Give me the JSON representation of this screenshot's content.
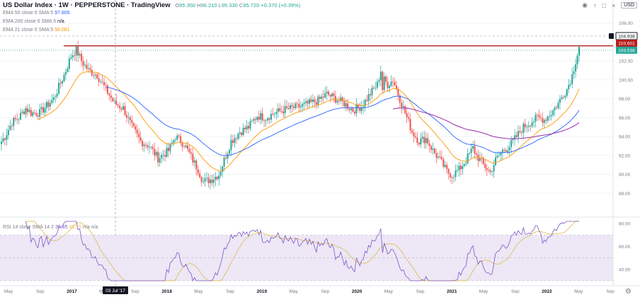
{
  "header": {
    "title": "US Dollar Index · 1W · PEPPERSTONE · TradingView",
    "ohlc": {
      "o_label": "O",
      "o": "95.350",
      "h_label": "H",
      "h": "96.210",
      "l_label": "L",
      "l": "95.330",
      "c_label": "C",
      "c": "95.720",
      "change": "+0.370 (+0.39%)"
    }
  },
  "legend": [
    {
      "label": "EMA 50 close 0 SMA 5",
      "value": "97.806",
      "color": "#2962ff"
    },
    {
      "label": "EMA 200 close 0 SMA 5",
      "value": "n/a",
      "color": "#9c27b0"
    },
    {
      "label": "EMA 21 close 0 SMA 5",
      "value": "98.081",
      "color": "#ff9800"
    }
  ],
  "rsi_legend": {
    "label": "RSI 14 close SMA 14 2",
    "v1": "35.85",
    "v2": "40.79",
    "v3": "n/a n/a",
    "c1": "#7e57c2",
    "c2": "#e0c060"
  },
  "toolbar": {
    "currency": "USD",
    "icons": [
      "eye-icon",
      "up-arrow-icon",
      "square-icon",
      "close-icon"
    ]
  },
  "settings_icon": "gear-icon",
  "price_labels": {
    "resistance": "104.938",
    "red": "103.601",
    "green": "103.538"
  },
  "chart_data": {
    "type": "candlestick",
    "title": "US Dollar Index",
    "price_ylim": [
      86,
      106.8
    ],
    "price_ticks": [
      88,
      90,
      92,
      94,
      96,
      98,
      100,
      102,
      106
    ],
    "rsi_ylim": [
      30,
      82
    ],
    "rsi_ticks": [
      40,
      60,
      80
    ],
    "rsi_band": [
      30,
      70
    ],
    "resistance_level": 103.6,
    "x_labels": [
      "May",
      "Sep",
      "2017",
      "May",
      "Sep",
      "2018",
      "May",
      "Sep",
      "2019",
      "May",
      "Sep",
      "2020",
      "May",
      "Sep",
      "2021",
      "May",
      "Sep",
      "2022",
      "May",
      "Sep"
    ],
    "crosshair_date": "03 Jul '17",
    "key_points": [
      {
        "t": 0,
        "p": 93.5
      },
      {
        "t": 2,
        "p": 94
      },
      {
        "t": 6,
        "p": 95.5
      },
      {
        "t": 10,
        "p": 96
      },
      {
        "t": 14,
        "p": 97
      },
      {
        "t": 17,
        "p": 96.5
      },
      {
        "t": 22,
        "p": 96.5
      },
      {
        "t": 30,
        "p": 98
      },
      {
        "t": 36,
        "p": 100.5
      },
      {
        "t": 40,
        "p": 102.5
      },
      {
        "t": 43,
        "p": 103.2
      },
      {
        "t": 46,
        "p": 102
      },
      {
        "t": 50,
        "p": 101
      },
      {
        "t": 55,
        "p": 100.5
      },
      {
        "t": 60,
        "p": 99
      },
      {
        "t": 65,
        "p": 97.5
      },
      {
        "t": 70,
        "p": 97
      },
      {
        "t": 75,
        "p": 95
      },
      {
        "t": 80,
        "p": 93.5
      },
      {
        "t": 85,
        "p": 93
      },
      {
        "t": 90,
        "p": 91.7
      },
      {
        "t": 96,
        "p": 92.5
      },
      {
        "t": 100,
        "p": 94
      },
      {
        "t": 105,
        "p": 93.2
      },
      {
        "t": 110,
        "p": 91.5
      },
      {
        "t": 113,
        "p": 90.5
      },
      {
        "t": 116,
        "p": 89.2
      },
      {
        "t": 121,
        "p": 89.5
      },
      {
        "t": 125,
        "p": 90
      },
      {
        "t": 128,
        "p": 91.5
      },
      {
        "t": 132,
        "p": 93.5
      },
      {
        "t": 137,
        "p": 94.5
      },
      {
        "t": 142,
        "p": 95
      },
      {
        "t": 147,
        "p": 96.2
      },
      {
        "t": 152,
        "p": 96
      },
      {
        "t": 157,
        "p": 96.5
      },
      {
        "t": 162,
        "p": 96.8
      },
      {
        "t": 167,
        "p": 97
      },
      {
        "t": 172,
        "p": 97.2
      },
      {
        "t": 177,
        "p": 97.5
      },
      {
        "t": 182,
        "p": 97.8
      },
      {
        "t": 187,
        "p": 98.5
      },
      {
        "t": 192,
        "p": 98
      },
      {
        "t": 197,
        "p": 97.5
      },
      {
        "t": 202,
        "p": 96.8
      },
      {
        "t": 207,
        "p": 97.2
      },
      {
        "t": 210,
        "p": 98
      },
      {
        "t": 213,
        "p": 98.8
      },
      {
        "t": 216,
        "p": 99.5
      },
      {
        "t": 218,
        "p": 101
      },
      {
        "t": 219,
        "p": 99
      },
      {
        "t": 220,
        "p": 100
      },
      {
        "t": 222,
        "p": 99.5
      },
      {
        "t": 225,
        "p": 100
      },
      {
        "t": 228,
        "p": 98.5
      },
      {
        "t": 232,
        "p": 96.5
      },
      {
        "t": 236,
        "p": 94.5
      },
      {
        "t": 240,
        "p": 93.5
      },
      {
        "t": 244,
        "p": 93.8
      },
      {
        "t": 248,
        "p": 92.5
      },
      {
        "t": 252,
        "p": 91.5
      },
      {
        "t": 256,
        "p": 90.3
      },
      {
        "t": 259,
        "p": 89.9
      },
      {
        "t": 263,
        "p": 90.5
      },
      {
        "t": 267,
        "p": 91.5
      },
      {
        "t": 271,
        "p": 92.8
      },
      {
        "t": 273,
        "p": 92
      },
      {
        "t": 277,
        "p": 91
      },
      {
        "t": 281,
        "p": 90.2
      },
      {
        "t": 284,
        "p": 91.5
      },
      {
        "t": 288,
        "p": 92.5
      },
      {
        "t": 292,
        "p": 93
      },
      {
        "t": 296,
        "p": 94
      },
      {
        "t": 300,
        "p": 95
      },
      {
        "t": 304,
        "p": 95.5
      },
      {
        "t": 308,
        "p": 96
      },
      {
        "t": 312,
        "p": 95.8
      },
      {
        "t": 316,
        "p": 96.5
      },
      {
        "t": 320,
        "p": 97.5
      },
      {
        "t": 323,
        "p": 98.5
      },
      {
        "t": 325,
        "p": 99
      },
      {
        "t": 328,
        "p": 100.5
      },
      {
        "t": 330,
        "p": 102
      },
      {
        "t": 332,
        "p": 103.5
      }
    ],
    "series": [
      {
        "name": "EMA 50",
        "color": "#2962ff",
        "period": 50
      },
      {
        "name": "EMA 200",
        "color": "#9c27b0",
        "period": 200
      },
      {
        "name": "EMA 21",
        "color": "#ff9800",
        "period": 21
      },
      {
        "name": "RSI 14",
        "color": "#7e57c2",
        "period": 14
      },
      {
        "name": "RSI SMA 14",
        "color": "#e0c060",
        "period": 14
      }
    ],
    "colors": {
      "up": "#26a69a",
      "down": "#ef5350",
      "resistance": "#b71c1c",
      "band": "#ede7f6"
    }
  }
}
